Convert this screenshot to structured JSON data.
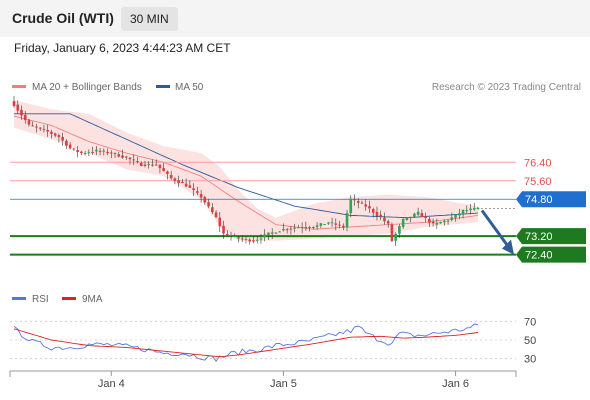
{
  "header": {
    "title": "Crude Oil (WTI)",
    "timeframe": "30 MIN"
  },
  "datetime": "Friday, January 6, 2023 4:44:23 AM CET",
  "legend": {
    "ma20_label": "MA 20 + Bollinger Bands",
    "ma50_label": "MA 50",
    "ma20_color": "#f08080",
    "ma50_color": "#2d5a9e",
    "copyright": "Research © 2023 Trading Central"
  },
  "colors": {
    "bull": "#2ba84a",
    "bear": "#d94040",
    "band_fill": "#fcd8d8",
    "resistance": "#f4a0a0",
    "support": "#1e7a1e",
    "pivot": "#1f6fd0",
    "rsi": "#5577dd",
    "rsi_ma": "#dd2222",
    "arrow": "#2f5e9a"
  },
  "chart_data": [
    {
      "type": "candlestick",
      "ylim": [
        71.3,
        79.1
      ],
      "x_ticks": [
        "Jan 4",
        "Jan 5",
        "Jan 6"
      ],
      "levels": [
        {
          "value": 76.4,
          "label": "76.40",
          "kind": "resistance"
        },
        {
          "value": 75.6,
          "label": "75.60",
          "kind": "resistance"
        },
        {
          "value": 74.8,
          "label": "74.80",
          "kind": "pivot"
        },
        {
          "value": 73.2,
          "label": "73.20",
          "kind": "support"
        },
        {
          "value": 72.4,
          "label": "72.40",
          "kind": "support"
        }
      ],
      "close_anchors": [
        [
          0,
          78.9
        ],
        [
          4,
          78.0
        ],
        [
          8,
          77.8
        ],
        [
          12,
          77.5
        ],
        [
          15,
          77.0
        ],
        [
          18,
          76.8
        ],
        [
          22,
          76.9
        ],
        [
          26,
          76.8
        ],
        [
          30,
          76.6
        ],
        [
          34,
          76.3
        ],
        [
          38,
          76.3
        ],
        [
          42,
          75.7
        ],
        [
          46,
          75.4
        ],
        [
          50,
          74.9
        ],
        [
          54,
          74.0
        ],
        [
          56,
          73.3
        ],
        [
          60,
          73.1
        ],
        [
          64,
          73.0
        ],
        [
          68,
          73.3
        ],
        [
          72,
          73.5
        ],
        [
          76,
          73.6
        ],
        [
          80,
          73.6
        ],
        [
          84,
          73.8
        ],
        [
          88,
          73.6
        ],
        [
          90,
          74.8
        ],
        [
          94,
          74.5
        ],
        [
          98,
          74.0
        ],
        [
          100,
          73.7
        ],
        [
          101,
          73.0
        ],
        [
          104,
          73.9
        ],
        [
          108,
          74.2
        ],
        [
          112,
          73.7
        ],
        [
          116,
          73.9
        ],
        [
          120,
          74.3
        ],
        [
          124,
          74.4
        ]
      ],
      "ma20_anchors": [
        [
          0,
          78.4
        ],
        [
          10,
          78.0
        ],
        [
          20,
          77.3
        ],
        [
          30,
          76.8
        ],
        [
          40,
          76.4
        ],
        [
          50,
          75.8
        ],
        [
          60,
          74.7
        ],
        [
          70,
          73.7
        ],
        [
          80,
          73.5
        ],
        [
          90,
          73.6
        ],
        [
          100,
          73.7
        ],
        [
          110,
          73.8
        ],
        [
          124,
          74.1
        ]
      ],
      "ma50_anchors": [
        [
          0,
          78.5
        ],
        [
          15,
          78.5
        ],
        [
          30,
          77.4
        ],
        [
          45,
          76.3
        ],
        [
          60,
          75.3
        ],
        [
          75,
          74.5
        ],
        [
          90,
          74.1
        ],
        [
          105,
          74.0
        ],
        [
          124,
          74.2
        ]
      ],
      "band_upper_anchors": [
        [
          0,
          79.1
        ],
        [
          10,
          78.7
        ],
        [
          20,
          78.5
        ],
        [
          30,
          77.7
        ],
        [
          40,
          77.1
        ],
        [
          50,
          76.8
        ],
        [
          55,
          76.2
        ],
        [
          60,
          75.2
        ],
        [
          65,
          74.4
        ],
        [
          70,
          74.0
        ],
        [
          80,
          74.6
        ],
        [
          90,
          74.9
        ],
        [
          100,
          75.0
        ],
        [
          110,
          74.9
        ],
        [
          124,
          74.5
        ]
      ],
      "band_lower_anchors": [
        [
          0,
          77.9
        ],
        [
          10,
          77.4
        ],
        [
          20,
          76.8
        ],
        [
          30,
          76.1
        ],
        [
          40,
          75.8
        ],
        [
          50,
          74.8
        ],
        [
          55,
          73.6
        ],
        [
          60,
          73.0
        ],
        [
          70,
          73.0
        ],
        [
          80,
          73.1
        ],
        [
          90,
          73.2
        ],
        [
          100,
          73.3
        ],
        [
          110,
          73.6
        ],
        [
          124,
          73.8
        ]
      ]
    },
    {
      "type": "line",
      "legend": [
        "RSI",
        "9MA"
      ],
      "ylim": [
        20,
        80
      ],
      "y_ticks": [
        70,
        50,
        30
      ],
      "rsi_anchors": [
        [
          0,
          62
        ],
        [
          5,
          48
        ],
        [
          10,
          42
        ],
        [
          15,
          42
        ],
        [
          20,
          45
        ],
        [
          25,
          45
        ],
        [
          30,
          43
        ],
        [
          35,
          40
        ],
        [
          40,
          36
        ],
        [
          45,
          36
        ],
        [
          50,
          32
        ],
        [
          54,
          30
        ],
        [
          58,
          35
        ],
        [
          62,
          38
        ],
        [
          66,
          40
        ],
        [
          70,
          44
        ],
        [
          74,
          46
        ],
        [
          78,
          48
        ],
        [
          82,
          52
        ],
        [
          86,
          56
        ],
        [
          88,
          58
        ],
        [
          90,
          60
        ],
        [
          92,
          64
        ],
        [
          95,
          55
        ],
        [
          98,
          50
        ],
        [
          101,
          46
        ],
        [
          103,
          57
        ],
        [
          106,
          55
        ],
        [
          110,
          55
        ],
        [
          114,
          58
        ],
        [
          118,
          60
        ],
        [
          122,
          63
        ],
        [
          124,
          66
        ]
      ],
      "ma_anchors": [
        [
          0,
          62
        ],
        [
          10,
          50
        ],
        [
          20,
          44
        ],
        [
          30,
          42
        ],
        [
          40,
          38
        ],
        [
          50,
          34
        ],
        [
          55,
          32
        ],
        [
          60,
          34
        ],
        [
          70,
          40
        ],
        [
          80,
          46
        ],
        [
          90,
          53
        ],
        [
          98,
          54
        ],
        [
          104,
          52
        ],
        [
          110,
          53
        ],
        [
          118,
          55
        ],
        [
          124,
          58
        ]
      ]
    }
  ]
}
